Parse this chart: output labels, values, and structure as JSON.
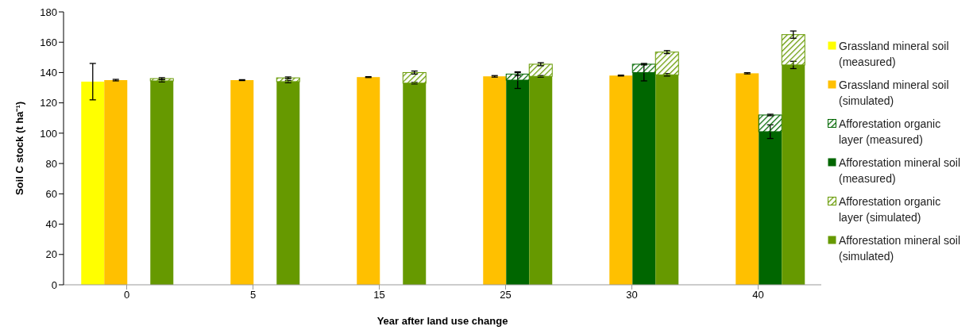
{
  "chart_data": {
    "type": "bar",
    "xlabel": "Year after land use change",
    "ylabel": "Soil C stock (t ha⁻¹)",
    "categories": [
      "0",
      "5",
      "15",
      "25",
      "30",
      "40"
    ],
    "ylim": [
      0,
      180
    ],
    "yticks": [
      0,
      20,
      40,
      60,
      80,
      100,
      120,
      140,
      160,
      180
    ],
    "legend": "right",
    "series": [
      {
        "name": "Grassland mineral soil (measured)",
        "color": "#ffff00",
        "values": [
          134,
          null,
          null,
          null,
          null,
          null
        ],
        "errors": [
          12,
          null,
          null,
          null,
          null,
          null
        ]
      },
      {
        "name": "Grassland mineral soil (simulated)",
        "color": "#ffc000",
        "values": [
          135,
          135,
          137,
          137.5,
          138,
          139.5
        ],
        "errors": [
          0.5,
          0.3,
          0.3,
          0.5,
          0.3,
          0.4
        ]
      },
      {
        "name": "Afforestation organic layer (measured)",
        "color": "#006600",
        "base": [
          null,
          null,
          null,
          135,
          140,
          101
        ],
        "values": [
          null,
          null,
          null,
          4,
          5.5,
          11
        ],
        "errors": [
          null,
          null,
          null,
          1,
          0.5,
          0.5
        ]
      },
      {
        "name": "Afforestation mineral soil (measured)",
        "color": "#006600",
        "values": [
          null,
          null,
          null,
          135,
          140,
          101
        ],
        "errors": [
          null,
          null,
          null,
          5.5,
          5.5,
          4.5
        ]
      },
      {
        "name": "Afforestation organic layer (simulated)",
        "color": "#669900",
        "base": [
          134.5,
          134,
          133,
          137.5,
          138.5,
          145
        ],
        "values": [
          1.5,
          2.5,
          7,
          8,
          15,
          20
        ],
        "errors": [
          0.6,
          0.6,
          1,
          1,
          1,
          2.4
        ]
      },
      {
        "name": "Afforestation mineral soil (simulated)",
        "color": "#669900",
        "values": [
          134.5,
          134,
          133,
          137.5,
          138.5,
          145
        ],
        "errors": [
          0.7,
          0.7,
          0.5,
          0.5,
          0.8,
          2.4
        ]
      }
    ]
  }
}
